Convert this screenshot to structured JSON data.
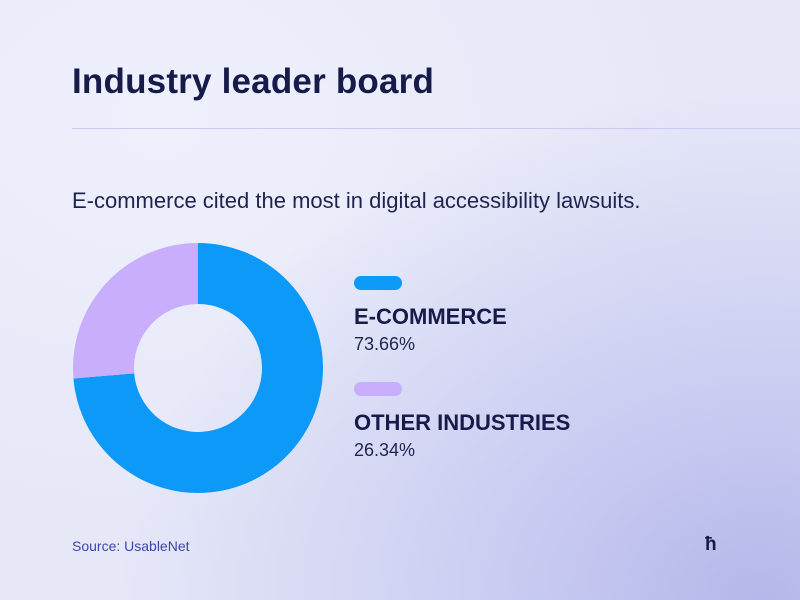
{
  "title": "Industry leader board",
  "subtitle": "E-commerce cited the most in digital accessibility lawsuits.",
  "source": "Source: UsableNet",
  "logo": "ћ",
  "colors": {
    "ecommerce": "#0d99f7",
    "other": "#c8aefc"
  },
  "chart_data": {
    "type": "pie",
    "title": "",
    "slices": [
      {
        "label": "E-COMMERCE",
        "value": 73.66,
        "display": "73.66%",
        "color": "#0d99f7"
      },
      {
        "label": "OTHER INDUSTRIES",
        "value": 26.34,
        "display": "26.34%",
        "color": "#c8aefc"
      }
    ],
    "legend": "right"
  }
}
